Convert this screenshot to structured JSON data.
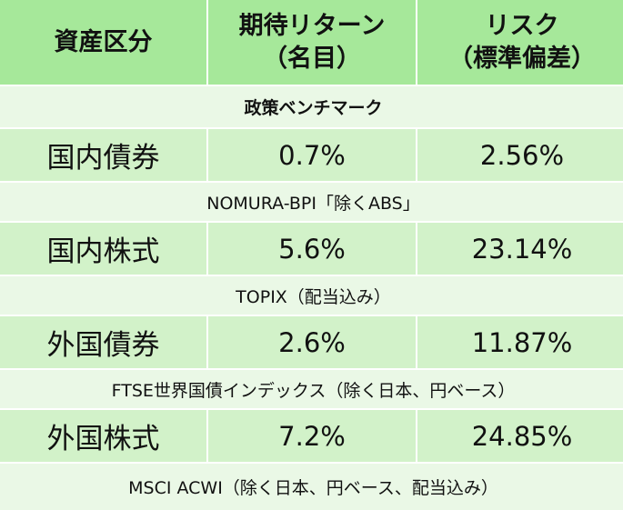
{
  "header": {
    "col1": "資産区分",
    "col2_line1": "期待リターン",
    "col2_line2": "（名目）",
    "col3_line1": "リスク",
    "col3_line2": "（標準偏差）"
  },
  "benchmark_heading": "政策ベンチマーク",
  "rows": [
    {
      "asset": "国内債券",
      "return": "0.7%",
      "risk": "2.56%",
      "index": "NOMURA-BPI「除くABS」"
    },
    {
      "asset": "国内株式",
      "return": "5.6%",
      "risk": "23.14%",
      "index": "TOPIX（配当込み）"
    },
    {
      "asset": "外国債券",
      "return": "2.6%",
      "risk": "11.87%",
      "index": "FTSE世界国債インデックス（除く日本、円ベース）"
    },
    {
      "asset": "外国株式",
      "return": "7.2%",
      "risk": "24.85%",
      "index": "MSCI ACWI（除く日本、円ベース、配当込み）"
    }
  ],
  "colors": {
    "header_bg": "#a6e89a",
    "data_bg": "#d2f2c9",
    "subrow_bg": "#eaf8e6"
  }
}
